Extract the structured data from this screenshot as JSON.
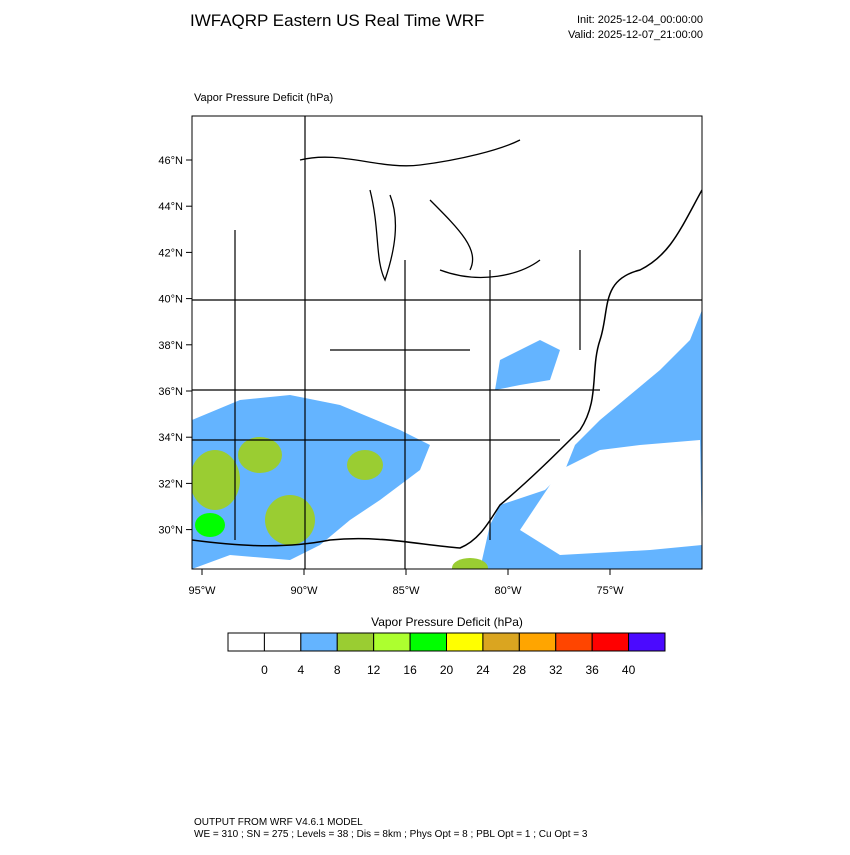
{
  "header": {
    "title": "IWFAQRP Eastern US Real Time WRF",
    "init": "Init: 2025-12-04_00:00:00",
    "valid": "Valid: 2025-12-07_21:00:00"
  },
  "map": {
    "subtitle": "Vapor Pressure Deficit   (hPa)",
    "lat_labels": [
      "46°N",
      "44°N",
      "42°N",
      "40°N",
      "38°N",
      "36°N",
      "34°N",
      "32°N",
      "30°N"
    ],
    "lon_labels": [
      "95°W",
      "90°W",
      "85°W",
      "80°W",
      "75°W"
    ]
  },
  "colorbar": {
    "title": "Vapor Pressure Deficit  (hPa)",
    "colors": [
      "#ffffff",
      "#ffffff",
      "#64b4ff",
      "#9acd32",
      "#adff2f",
      "#00ff00",
      "#ffff00",
      "#daa520",
      "#ffa500",
      "#ff4500",
      "#ff0000",
      "#4b0aff"
    ],
    "labels": [
      0,
      4,
      8,
      12,
      16,
      20,
      24,
      28,
      32,
      36,
      40
    ]
  },
  "footer": {
    "line1": "OUTPUT FROM WRF V4.6.1 MODEL",
    "line2": "WE = 310 ; SN = 275 ; Levels = 38 ; Dis = 8km ; Phys Opt = 8 ; PBL Opt = 1 ; Cu Opt = 3"
  }
}
